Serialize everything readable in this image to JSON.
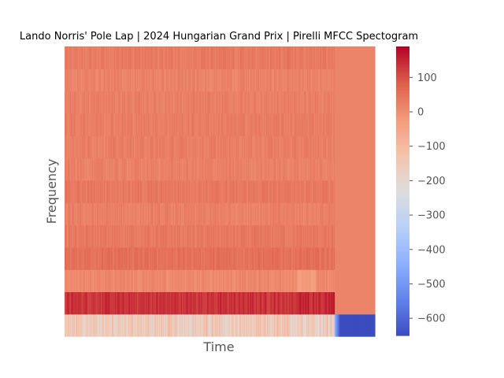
{
  "chart_data": {
    "type": "heatmap",
    "title": "Lando Norris' Pole Lap | 2024 Hungarian Grand Prix | Pirelli MFCC Spectogram",
    "xlabel": "Time",
    "ylabel": "Frequency",
    "x_ticks_shown": false,
    "y_ticks_shown": false,
    "n_coefficient_rows": 13,
    "n_time_frames": 480,
    "active_fraction_of_time": 0.87,
    "row_mean_values": [
      -150,
      135,
      12,
      55,
      38,
      25,
      40,
      25,
      30,
      32,
      28,
      22,
      36
    ],
    "row_padding_values": [
      -650,
      20,
      20,
      20,
      20,
      20,
      20,
      20,
      20,
      20,
      20,
      20,
      20
    ],
    "grid": false,
    "colorbar": {
      "colormap": "coolwarm",
      "range": [
        -650,
        190
      ],
      "ticks": [
        100,
        0,
        -100,
        -200,
        -300,
        -400,
        -500,
        -600
      ],
      "tick_labels": [
        "100",
        "0",
        "−100",
        "−200",
        "−300",
        "−400",
        "−500",
        "−600"
      ]
    },
    "colors": {
      "axis_label": "#555555",
      "tick_label": "#555555",
      "title": "#000000",
      "background": "#ffffff"
    }
  }
}
